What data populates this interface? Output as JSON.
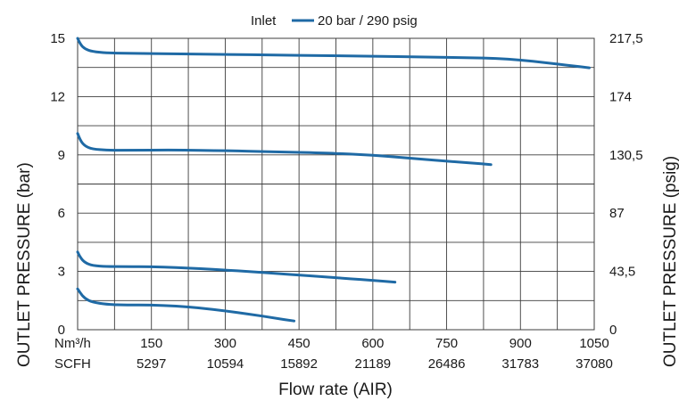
{
  "chart_data": {
    "type": "line",
    "legend": {
      "title": "Inlet",
      "entries": [
        "20 bar / 290 psig"
      ],
      "placement": "top-center"
    },
    "ylabel_left": "OUTLET PRESSURE (bar)",
    "ylabel_right": "OUTLET PRESSURE (psig)",
    "xlabel": "Flow rate (AIR)",
    "xlim": [
      0,
      1050
    ],
    "ylim": [
      0,
      15
    ],
    "y_ticks_left": [
      "0",
      "3",
      "6",
      "9",
      "12",
      "15"
    ],
    "y_ticks_right": [
      "0",
      "43,5",
      "87",
      "130,5",
      "174",
      "217,5"
    ],
    "x_rows": [
      {
        "unit": "Nm³/h",
        "ticks": [
          "150",
          "300",
          "450",
          "600",
          "750",
          "900",
          "1050"
        ]
      },
      {
        "unit": "SCFH",
        "ticks": [
          "5297",
          "10594",
          "15892",
          "21189",
          "26486",
          "31783",
          "37080"
        ]
      }
    ],
    "grid": true,
    "line_color": "#1f6aa5",
    "series": [
      {
        "x": [
          0,
          5,
          15,
          30,
          60,
          100,
          200,
          300,
          400,
          500,
          600,
          700,
          800,
          850,
          900,
          950,
          1000,
          1040
        ],
        "y": [
          15,
          14.7,
          14.45,
          14.32,
          14.25,
          14.23,
          14.2,
          14.17,
          14.14,
          14.11,
          14.08,
          14.04,
          14.0,
          13.97,
          13.88,
          13.75,
          13.6,
          13.48
        ]
      },
      {
        "x": [
          0,
          5,
          15,
          30,
          60,
          100,
          200,
          300,
          400,
          500,
          550,
          600,
          650,
          700,
          750,
          800,
          840
        ],
        "y": [
          10.1,
          9.75,
          9.45,
          9.3,
          9.24,
          9.24,
          9.25,
          9.22,
          9.16,
          9.1,
          9.05,
          8.98,
          8.88,
          8.78,
          8.68,
          8.58,
          8.5
        ]
      },
      {
        "x": [
          0,
          5,
          15,
          30,
          60,
          100,
          150,
          200,
          250,
          300,
          350,
          400,
          450,
          500,
          550,
          600,
          645
        ],
        "y": [
          4.0,
          3.72,
          3.45,
          3.3,
          3.25,
          3.25,
          3.24,
          3.2,
          3.14,
          3.07,
          2.99,
          2.9,
          2.81,
          2.73,
          2.63,
          2.54,
          2.45
        ]
      },
      {
        "x": [
          0,
          5,
          15,
          30,
          60,
          100,
          150,
          200,
          250,
          300,
          350,
          400,
          440
        ],
        "y": [
          2.1,
          1.9,
          1.6,
          1.42,
          1.3,
          1.27,
          1.27,
          1.22,
          1.12,
          0.97,
          0.8,
          0.6,
          0.45
        ]
      }
    ]
  }
}
